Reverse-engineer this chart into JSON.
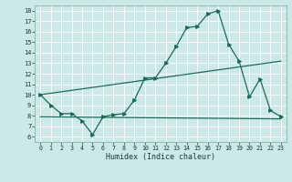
{
  "xlabel": "Humidex (Indice chaleur)",
  "bg_color": "#cce8e8",
  "grid_color": "#b0d8d8",
  "line_color": "#1a6b5a",
  "xlim": [
    -0.5,
    23.5
  ],
  "ylim": [
    5.5,
    18.5
  ],
  "xticks": [
    0,
    1,
    2,
    3,
    4,
    5,
    6,
    7,
    8,
    9,
    10,
    11,
    12,
    13,
    14,
    15,
    16,
    17,
    18,
    19,
    20,
    21,
    22,
    23
  ],
  "yticks": [
    6,
    7,
    8,
    9,
    10,
    11,
    12,
    13,
    14,
    15,
    16,
    17,
    18
  ],
  "line1_x": [
    0,
    1,
    2,
    3,
    4,
    5,
    6,
    7,
    8,
    9,
    10,
    11,
    12,
    13,
    14,
    15,
    16,
    17,
    18,
    19,
    20,
    21,
    22,
    23
  ],
  "line1_y": [
    10.0,
    9.0,
    8.2,
    8.2,
    7.5,
    6.2,
    7.9,
    8.1,
    8.2,
    9.5,
    11.6,
    11.6,
    13.0,
    14.6,
    16.4,
    16.5,
    17.7,
    18.0,
    14.8,
    13.2,
    9.8,
    11.5,
    8.5,
    7.9
  ],
  "line2_x": [
    0,
    23
  ],
  "line2_y": [
    7.9,
    7.7
  ],
  "line3_x": [
    0,
    23
  ],
  "line3_y": [
    10.0,
    13.2
  ]
}
